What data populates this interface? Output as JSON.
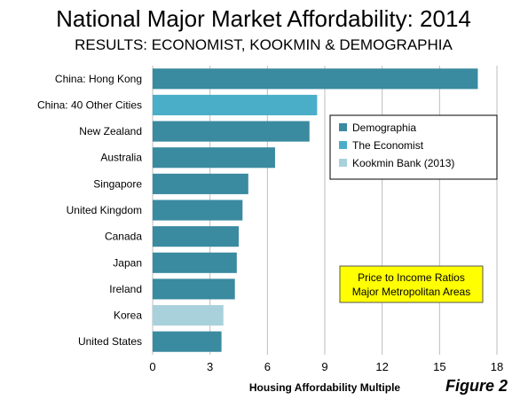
{
  "chart_data": {
    "type": "bar",
    "orientation": "horizontal",
    "title": "National Major Market Affordability: 2014",
    "subtitle": "RESULTS: ECONOMIST, KOOKMIN & DEMOGRAPHIA",
    "xlabel": "Housing Affordability Multiple",
    "ylabel": "",
    "xlim": [
      0,
      18
    ],
    "xticks": [
      "0",
      "3",
      "6",
      "9",
      "12",
      "15",
      "18"
    ],
    "grid": "vertical",
    "categories": [
      "China: Hong Kong",
      "China: 40 Other Cities",
      "New Zealand",
      "Australia",
      "Singapore",
      "United Kingdom",
      "Canada",
      "Japan",
      "Ireland",
      "Korea",
      "United States"
    ],
    "values": [
      17.0,
      8.6,
      8.2,
      6.4,
      5.0,
      4.7,
      4.5,
      4.4,
      4.3,
      3.7,
      3.6
    ],
    "sources": [
      "Demographia",
      "The Economist",
      "Demographia",
      "Demographia",
      "Demographia",
      "Demographia",
      "Demographia",
      "Demographia",
      "Demographia",
      "Kookmin Bank (2013)",
      "Demographia"
    ],
    "legend": {
      "position": "right",
      "entries": [
        {
          "name": "Demographia",
          "color": "#3a8aa0"
        },
        {
          "name": "The Economist",
          "color": "#4aaec8"
        },
        {
          "name": "Kookmin Bank (2013)",
          "color": "#a9d1dc"
        }
      ]
    },
    "annotation": {
      "lines": [
        "Price to Income Ratios",
        "Major Metropolitan Areas"
      ],
      "background": "#ffff00"
    },
    "figure_label": "Figure 2"
  }
}
